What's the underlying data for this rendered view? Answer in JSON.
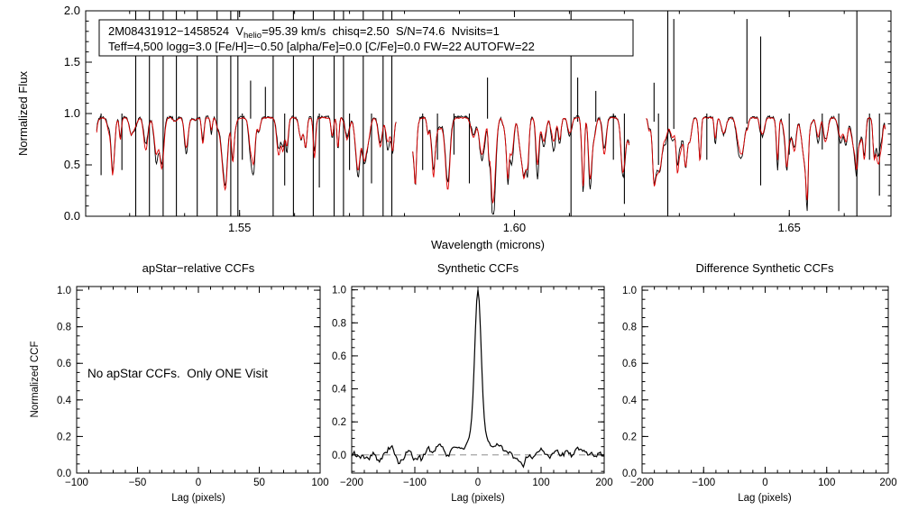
{
  "colors": {
    "background": "#ffffff",
    "frame": "#000000",
    "observed": "#000000",
    "synthetic": "#dd0000",
    "zero_line": "#999999",
    "text": "#000000"
  },
  "chart_data": [
    {
      "type": "line",
      "title": "",
      "xlabel": "Wavelength (microns)",
      "ylabel": "Normalized Flux",
      "xlim": [
        1.522,
        1.6685
      ],
      "ylim": [
        0.0,
        2.0
      ],
      "xticks": [
        1.55,
        1.6,
        1.65
      ],
      "xticklabels": [
        "1.55",
        "1.60",
        "1.65"
      ],
      "yticks": [
        0.0,
        0.5,
        1.0,
        1.5,
        2.0
      ],
      "yticklabels": [
        "0.0",
        "0.5",
        "1.0",
        "1.5",
        "2.0"
      ],
      "x_minor_step": 0.01,
      "y_minor_step": 0.1,
      "legend": {
        "line1_prefix": "2M08431912−1458524  V",
        "line1_sub": "helio",
        "line1_suffix": "=95.39 km/s  chisq=2.50  S/N=74.6  Nvisits=1",
        "line2": "Teff=4,500 logg=3.0 [Fe/H]=−0.50 [alpha/Fe]=0.0 [C/Fe]=0.0 FW=22 AUTOFW=22"
      },
      "segments_microns": [
        [
          1.524,
          1.5785
        ],
        [
          1.5815,
          1.621
        ],
        [
          1.624,
          1.6675
        ]
      ],
      "series": [
        {
          "name": "observed spectrum",
          "color": "#000000",
          "continuum": 0.965,
          "noise": 0.013
        },
        {
          "name": "synthetic spectrum",
          "color": "#dd0000",
          "continuum": 0.958,
          "noise": 0.006
        }
      ],
      "absorption_lines": {
        "count": 150,
        "depth_range": [
          0.03,
          0.38
        ],
        "width_range": [
          0.00022,
          0.00065
        ],
        "seed": 42
      },
      "sky_residual_spikes": [
        [
          1.5248,
          0.4,
          1.0
        ],
        [
          1.5286,
          0.45,
          1.0
        ],
        [
          1.5311,
          0.0,
          2.0
        ],
        [
          1.5336,
          0.0,
          2.0
        ],
        [
          1.5361,
          0.0,
          2.0
        ],
        [
          1.5385,
          0.0,
          2.0
        ],
        [
          1.5423,
          0.0,
          2.0
        ],
        [
          1.5459,
          0.0,
          2.0
        ],
        [
          1.5484,
          0.0,
          2.0
        ],
        [
          1.5497,
          0.0,
          2.0
        ],
        [
          1.5505,
          0.55,
          1.0
        ],
        [
          1.552,
          0.95,
          1.32
        ],
        [
          1.5547,
          0.95,
          1.26
        ],
        [
          1.5561,
          0.0,
          2.0
        ],
        [
          1.5582,
          0.3,
          1.0
        ],
        [
          1.5598,
          0.0,
          2.0
        ],
        [
          1.5634,
          0.0,
          2.0
        ],
        [
          1.5645,
          0.28,
          1.0
        ],
        [
          1.5672,
          0.0,
          2.0
        ],
        [
          1.5689,
          0.0,
          2.0
        ],
        [
          1.57,
          0.45,
          1.0
        ],
        [
          1.5725,
          0.0,
          2.0
        ],
        [
          1.574,
          0.32,
          1.0
        ],
        [
          1.5761,
          0.0,
          2.0
        ],
        [
          1.5777,
          0.0,
          2.0
        ],
        [
          1.5833,
          0.45,
          1.0
        ],
        [
          1.586,
          0.55,
          1.0
        ],
        [
          1.589,
          0.6,
          1.0
        ],
        [
          1.5918,
          0.32,
          1.0
        ],
        [
          1.5951,
          0.95,
          1.35
        ],
        [
          1.6103,
          0.0,
          2.0
        ],
        [
          1.6115,
          0.92,
          1.35
        ],
        [
          1.6148,
          0.92,
          1.22
        ],
        [
          1.618,
          0.55,
          1.0
        ],
        [
          1.62,
          0.12,
          1.0
        ],
        [
          1.6254,
          0.92,
          1.3
        ],
        [
          1.6262,
          0.5,
          1.0
        ],
        [
          1.6279,
          0.0,
          2.0
        ],
        [
          1.629,
          0.85,
          1.92
        ],
        [
          1.635,
          0.55,
          1.0
        ],
        [
          1.6423,
          0.9,
          1.92
        ],
        [
          1.6448,
          0.3,
          1.75
        ],
        [
          1.65,
          0.6,
          1.0
        ],
        [
          1.656,
          0.65,
          1.0
        ],
        [
          1.659,
          0.05,
          1.0
        ],
        [
          1.6623,
          0.0,
          2.0
        ],
        [
          1.6646,
          0.55,
          1.0
        ],
        [
          1.6664,
          0.2,
          1.0
        ]
      ]
    },
    {
      "type": "line",
      "title": "apStar−relative CCFs",
      "xlabel": "Lag (pixels)",
      "ylabel": "Normalized CCF",
      "xlim": [
        -100,
        100
      ],
      "ylim": [
        0.0,
        1.02
      ],
      "xticks": [
        -100,
        -50,
        0,
        50,
        100
      ],
      "xticklabels": [
        "−100",
        "−50",
        "0",
        "50",
        "100"
      ],
      "yticks": [
        0.0,
        0.2,
        0.4,
        0.6,
        0.8,
        1.0
      ],
      "yticklabels": [
        "0.0",
        "0.2",
        "0.4",
        "0.6",
        "0.8",
        "1.0"
      ],
      "x_minor_step": 10,
      "y_minor_step": 0.05,
      "message": "No apStar CCFs.  Only ONE Visit",
      "series": []
    },
    {
      "type": "line",
      "title": "Synthetic CCFs",
      "xlabel": "Lag (pixels)",
      "ylabel": "",
      "xlim": [
        -200,
        200
      ],
      "ylim": [
        -0.11,
        1.02
      ],
      "xticks": [
        -200,
        -100,
        0,
        100,
        200
      ],
      "xticklabels": [
        "−200",
        "−100",
        "0",
        "100",
        "200"
      ],
      "yticks": [
        0.0,
        0.2,
        0.4,
        0.6,
        0.8,
        1.0
      ],
      "yticklabels": [
        "0.0",
        "0.2",
        "0.4",
        "0.6",
        "0.8",
        "1.0"
      ],
      "x_minor_step": 20,
      "y_minor_step": 0.05,
      "zero_line": 0.0,
      "peak": {
        "center": 0,
        "height": 1.0,
        "core_sigma": 5.0,
        "wing_sigma": 18.0,
        "wing_frac": 0.12,
        "noise_amplitude": 0.04,
        "seed": 7
      }
    },
    {
      "type": "line",
      "title": "Difference Synthetic CCFs",
      "xlabel": "Lag (pixels)",
      "ylabel": "",
      "xlim": [
        -200,
        200
      ],
      "ylim": [
        0.0,
        1.02
      ],
      "xticks": [
        -200,
        -100,
        0,
        100,
        200
      ],
      "xticklabels": [
        "−200",
        "−100",
        "0",
        "100",
        "200"
      ],
      "yticks": [
        0.0,
        0.2,
        0.4,
        0.6,
        0.8,
        1.0
      ],
      "yticklabels": [
        "0.0",
        "0.2",
        "0.4",
        "0.6",
        "0.8",
        "1.0"
      ],
      "x_minor_step": 20,
      "y_minor_step": 0.05
    }
  ]
}
